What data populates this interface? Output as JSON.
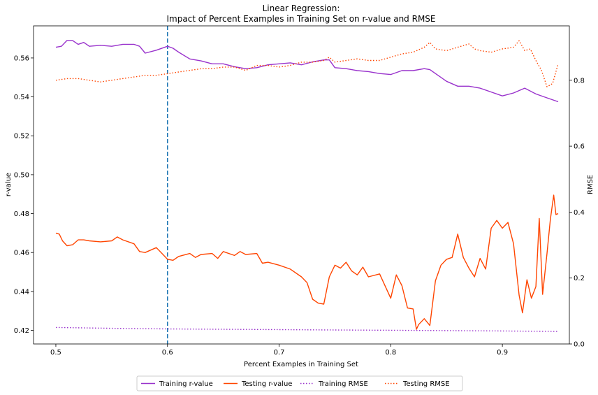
{
  "chart_data": {
    "type": "line",
    "title_line1": "Linear Regression:",
    "title_line2": "Impact of Percent Examples in Training Set on r-value and RMSE",
    "xlabel": "Percent Examples in Training Set",
    "ylabel_left": "r-value",
    "ylabel_right": "RMSE",
    "xlim": [
      0.48,
      0.96
    ],
    "ylim_left": [
      0.413,
      0.5765
    ],
    "ylim_right": [
      0.0,
      0.965
    ],
    "x_ticks": [
      "0.5",
      "0.6",
      "0.7",
      "0.8",
      "0.9"
    ],
    "y_left_ticks": [
      "0.42",
      "0.44",
      "0.46",
      "0.48",
      "0.50",
      "0.52",
      "0.54",
      "0.56"
    ],
    "y_right_ticks": [
      "0.0",
      "0.2",
      "0.4",
      "0.6",
      "0.8"
    ],
    "vline_x": 0.6,
    "series": [
      {
        "name": "Training r-value",
        "axis": "left",
        "color": "#9932CC",
        "style": "solid",
        "x": [
          0.5,
          0.505,
          0.51,
          0.515,
          0.52,
          0.525,
          0.53,
          0.54,
          0.55,
          0.56,
          0.57,
          0.575,
          0.58,
          0.59,
          0.6,
          0.605,
          0.61,
          0.62,
          0.63,
          0.64,
          0.65,
          0.66,
          0.67,
          0.68,
          0.69,
          0.7,
          0.71,
          0.72,
          0.73,
          0.74,
          0.745,
          0.75,
          0.76,
          0.77,
          0.78,
          0.79,
          0.8,
          0.81,
          0.82,
          0.83,
          0.835,
          0.84,
          0.85,
          0.86,
          0.87,
          0.88,
          0.89,
          0.9,
          0.91,
          0.92,
          0.93,
          0.94,
          0.95
        ],
        "values": [
          0.5655,
          0.566,
          0.569,
          0.569,
          0.567,
          0.568,
          0.566,
          0.5665,
          0.566,
          0.567,
          0.567,
          0.566,
          0.5625,
          0.564,
          0.566,
          0.565,
          0.563,
          0.5595,
          0.5585,
          0.557,
          0.557,
          0.5555,
          0.5545,
          0.555,
          0.5565,
          0.557,
          0.5575,
          0.5565,
          0.558,
          0.559,
          0.559,
          0.555,
          0.5545,
          0.5535,
          0.553,
          0.552,
          0.5515,
          0.5535,
          0.5535,
          0.5545,
          0.554,
          0.552,
          0.548,
          0.5455,
          0.5455,
          0.5445,
          0.5425,
          0.5405,
          0.542,
          0.5445,
          0.5415,
          0.5395,
          0.5375
        ]
      },
      {
        "name": "Testing r-value",
        "axis": "left",
        "color": "#FF4500",
        "style": "solid",
        "x": [
          0.5,
          0.503,
          0.506,
          0.51,
          0.515,
          0.52,
          0.525,
          0.53,
          0.54,
          0.55,
          0.555,
          0.56,
          0.57,
          0.575,
          0.58,
          0.59,
          0.6,
          0.605,
          0.61,
          0.62,
          0.625,
          0.63,
          0.64,
          0.645,
          0.65,
          0.66,
          0.665,
          0.67,
          0.68,
          0.685,
          0.69,
          0.7,
          0.71,
          0.72,
          0.725,
          0.73,
          0.735,
          0.74,
          0.745,
          0.75,
          0.755,
          0.76,
          0.765,
          0.77,
          0.775,
          0.78,
          0.79,
          0.8,
          0.805,
          0.81,
          0.815,
          0.82,
          0.823,
          0.825,
          0.83,
          0.835,
          0.84,
          0.845,
          0.85,
          0.855,
          0.86,
          0.865,
          0.87,
          0.875,
          0.88,
          0.885,
          0.89,
          0.895,
          0.9,
          0.905,
          0.91,
          0.915,
          0.918,
          0.922,
          0.926,
          0.93,
          0.933,
          0.936,
          0.94,
          0.943,
          0.946,
          0.948,
          0.95
        ],
        "values": [
          0.47,
          0.4695,
          0.466,
          0.4635,
          0.464,
          0.4665,
          0.4665,
          0.466,
          0.4655,
          0.466,
          0.468,
          0.4665,
          0.4645,
          0.4605,
          0.46,
          0.4625,
          0.4565,
          0.456,
          0.458,
          0.4595,
          0.4575,
          0.459,
          0.4595,
          0.457,
          0.4605,
          0.4585,
          0.4605,
          0.459,
          0.4595,
          0.4545,
          0.455,
          0.4535,
          0.4515,
          0.4475,
          0.4445,
          0.436,
          0.434,
          0.4335,
          0.4475,
          0.4535,
          0.452,
          0.455,
          0.4505,
          0.4485,
          0.4525,
          0.4475,
          0.449,
          0.4365,
          0.4485,
          0.443,
          0.4315,
          0.431,
          0.4205,
          0.423,
          0.426,
          0.4225,
          0.4455,
          0.4535,
          0.4565,
          0.4575,
          0.4695,
          0.4575,
          0.452,
          0.4475,
          0.457,
          0.4515,
          0.4725,
          0.4765,
          0.4725,
          0.4755,
          0.4645,
          0.438,
          0.429,
          0.446,
          0.4365,
          0.4425,
          0.4775,
          0.4385,
          0.4595,
          0.477,
          0.4895,
          0.4795,
          0.48
        ]
      },
      {
        "name": "Training RMSE",
        "axis": "right",
        "color": "#9932CC",
        "style": "dotted",
        "x": [
          0.5,
          0.55,
          0.6,
          0.65,
          0.7,
          0.75,
          0.8,
          0.85,
          0.9,
          0.95
        ],
        "values": [
          0.05,
          0.0475,
          0.0455,
          0.0445,
          0.0435,
          0.0425,
          0.0415,
          0.0405,
          0.0395,
          0.038
        ]
      },
      {
        "name": "Testing RMSE",
        "axis": "right",
        "color": "#FF4500",
        "style": "dotted",
        "x": [
          0.5,
          0.51,
          0.52,
          0.53,
          0.54,
          0.55,
          0.56,
          0.57,
          0.58,
          0.59,
          0.6,
          0.61,
          0.62,
          0.63,
          0.64,
          0.65,
          0.66,
          0.67,
          0.68,
          0.69,
          0.7,
          0.71,
          0.72,
          0.73,
          0.74,
          0.745,
          0.75,
          0.76,
          0.77,
          0.78,
          0.79,
          0.8,
          0.81,
          0.82,
          0.83,
          0.835,
          0.84,
          0.85,
          0.86,
          0.87,
          0.875,
          0.88,
          0.89,
          0.9,
          0.91,
          0.915,
          0.92,
          0.925,
          0.93,
          0.935,
          0.94,
          0.945,
          0.95
        ],
        "values": [
          0.8,
          0.805,
          0.805,
          0.8,
          0.795,
          0.8,
          0.805,
          0.81,
          0.815,
          0.815,
          0.82,
          0.825,
          0.83,
          0.835,
          0.835,
          0.84,
          0.84,
          0.83,
          0.845,
          0.845,
          0.84,
          0.845,
          0.855,
          0.855,
          0.86,
          0.87,
          0.855,
          0.86,
          0.865,
          0.86,
          0.86,
          0.87,
          0.88,
          0.885,
          0.9,
          0.915,
          0.895,
          0.89,
          0.9,
          0.91,
          0.895,
          0.89,
          0.885,
          0.895,
          0.9,
          0.92,
          0.89,
          0.895,
          0.86,
          0.83,
          0.78,
          0.79,
          0.85
        ]
      }
    ],
    "legend": {
      "placement": "bottom-center",
      "entries": [
        "Training r-value",
        "Testing r-value",
        "Training RMSE",
        "Testing RMSE"
      ]
    },
    "grid": false
  }
}
